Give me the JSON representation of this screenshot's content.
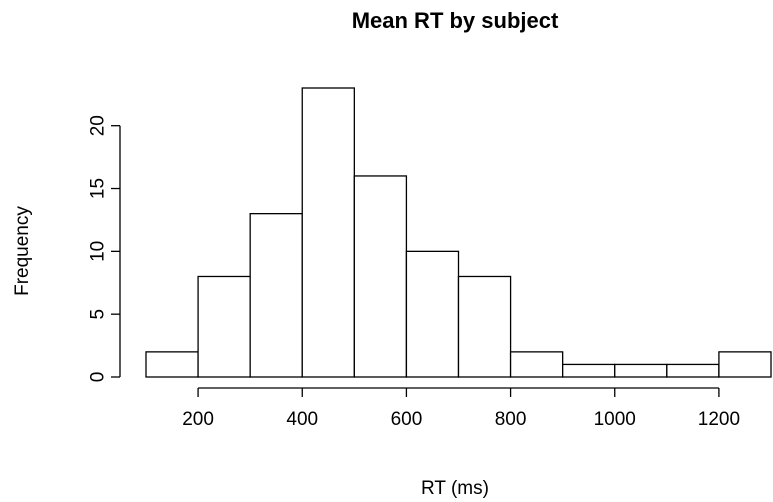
{
  "chart_data": {
    "type": "bar",
    "title": "Mean RT by subject",
    "xlabel": "RT (ms)",
    "ylabel": "Frequency",
    "bins": [
      {
        "start": 100,
        "end": 200,
        "count": 2
      },
      {
        "start": 200,
        "end": 300,
        "count": 8
      },
      {
        "start": 300,
        "end": 400,
        "count": 13
      },
      {
        "start": 400,
        "end": 500,
        "count": 23
      },
      {
        "start": 500,
        "end": 600,
        "count": 16
      },
      {
        "start": 600,
        "end": 700,
        "count": 10
      },
      {
        "start": 700,
        "end": 800,
        "count": 8
      },
      {
        "start": 800,
        "end": 900,
        "count": 2
      },
      {
        "start": 900,
        "end": 1000,
        "count": 1
      },
      {
        "start": 1000,
        "end": 1100,
        "count": 1
      },
      {
        "start": 1100,
        "end": 1200,
        "count": 1
      },
      {
        "start": 1200,
        "end": 1300,
        "count": 2
      }
    ],
    "x_ticks": [
      "200",
      "400",
      "600",
      "800",
      "1000",
      "1200"
    ],
    "y_ticks": [
      "0",
      "5",
      "10",
      "15",
      "20"
    ],
    "xlim": [
      100,
      1300
    ],
    "ylim": [
      0,
      23
    ],
    "grid": false,
    "bar_fill": "#ffffff",
    "bar_stroke": "#000000"
  }
}
